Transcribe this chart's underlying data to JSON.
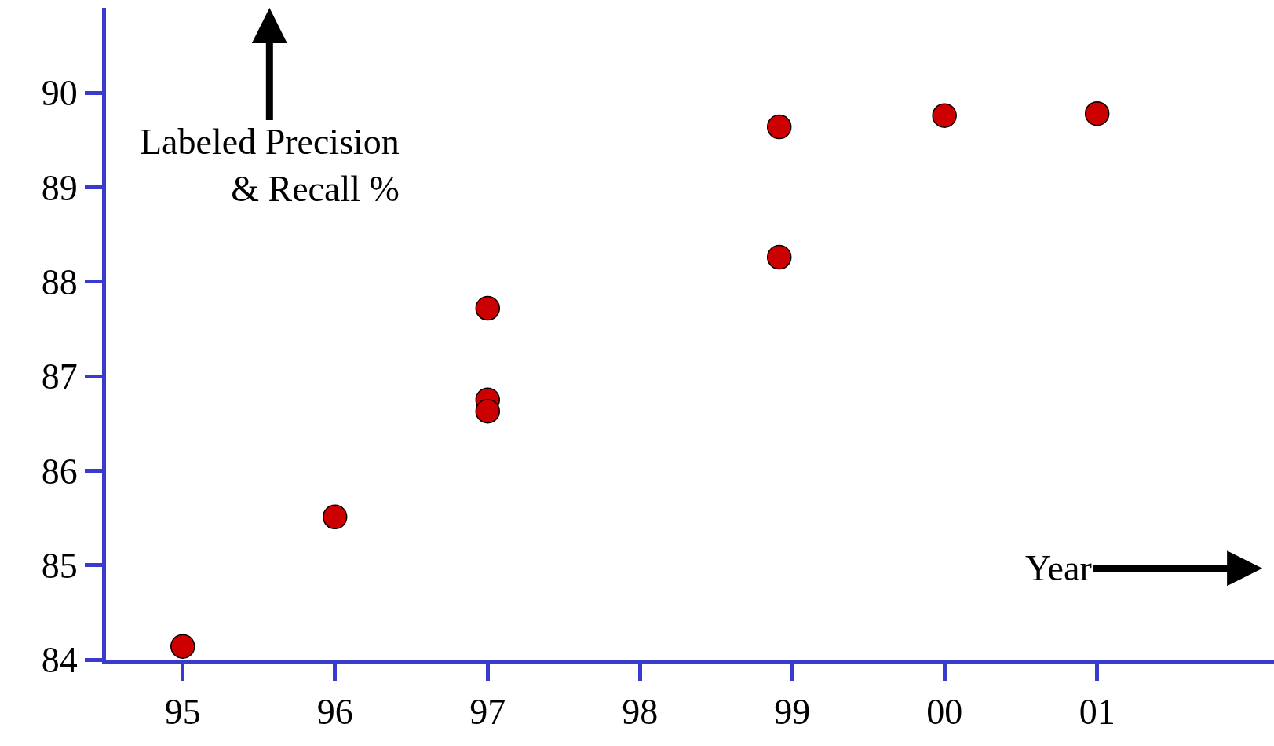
{
  "chart_data": {
    "type": "scatter",
    "xlabel": "Year",
    "ylabel": "Labeled Precision\n& Recall %",
    "x": [
      "1995-01-01",
      "1996-01-01",
      "1997-01-01",
      "1997-01-01",
      "1997-01-01",
      "1998-12-01",
      "1998-12-01",
      "2000-01-01",
      "2001-01-01"
    ],
    "series": [
      {
        "color": "#cc0000",
        "values": [
          84.14,
          85.51,
          87.72,
          86.75,
          86.63,
          88.26,
          89.64,
          89.76,
          89.78
        ]
      }
    ],
    "xlim": [
      "1994-07-01",
      "2002-03-01"
    ],
    "ylim": [
      84,
      90.9
    ],
    "xticks": [
      {
        "value": "1995",
        "label": "95"
      },
      {
        "value": "1996",
        "label": "96"
      },
      {
        "value": "1997",
        "label": "97"
      },
      {
        "value": "1998",
        "label": "98"
      },
      {
        "value": "1999",
        "label": "99"
      },
      {
        "value": "2000",
        "label": "00"
      },
      {
        "value": "2001",
        "label": "01"
      }
    ],
    "yticks": [
      84,
      85,
      86,
      87,
      88,
      89,
      90
    ],
    "marker": "circle",
    "grid": false,
    "legend": false
  }
}
